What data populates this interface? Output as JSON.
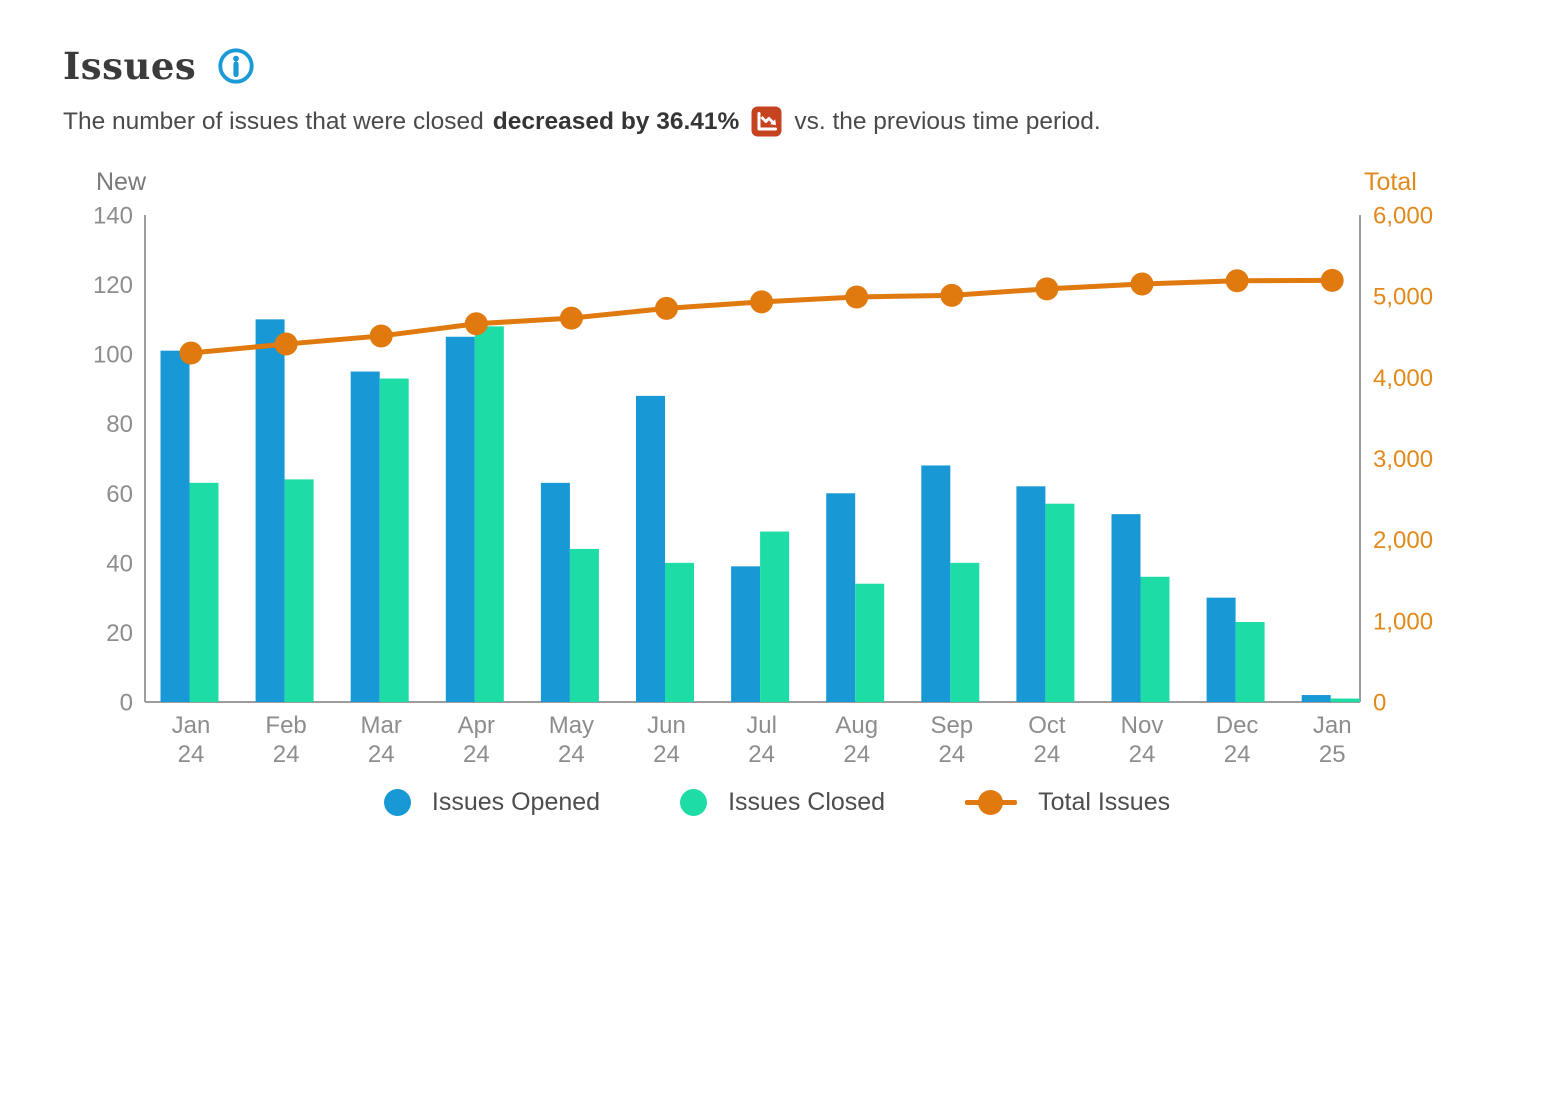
{
  "header": {
    "title": "Issues",
    "subtitle_prefix": "The number of issues that were closed",
    "subtitle_bold": "decreased by 36.41%",
    "subtitle_suffix": "vs. the previous time period.",
    "accent_blue": "#1a9ad7",
    "trend_icon_bg": "#c64320"
  },
  "chart_data": {
    "type": "combo-bar-line",
    "categories": [
      "Jan 24",
      "Feb 24",
      "Mar 24",
      "Apr 24",
      "May 24",
      "Jun 24",
      "Jul 24",
      "Aug 24",
      "Sep 24",
      "Oct 24",
      "Nov 24",
      "Dec 24",
      "Jan 25"
    ],
    "series": [
      {
        "name": "Issues Opened",
        "type": "bar",
        "axis": "left",
        "color": "#1899d6",
        "values": [
          101,
          110,
          95,
          105,
          63,
          88,
          39,
          60,
          68,
          62,
          54,
          30,
          2
        ]
      },
      {
        "name": "Issues Closed",
        "type": "bar",
        "axis": "left",
        "color": "#1edca6",
        "values": [
          63,
          64,
          93,
          108,
          44,
          40,
          49,
          34,
          40,
          57,
          36,
          23,
          1
        ]
      },
      {
        "name": "Total Issues",
        "type": "line",
        "axis": "right",
        "color": "#e0790e",
        "values": [
          4300,
          4410,
          4510,
          4660,
          4730,
          4850,
          4930,
          4990,
          5010,
          5090,
          5150,
          5190,
          5195
        ]
      }
    ],
    "left_axis": {
      "label": "New",
      "min": 0,
      "max": 140,
      "tick_step": 20,
      "ticks": [
        0,
        20,
        40,
        60,
        80,
        100,
        120,
        140
      ]
    },
    "right_axis": {
      "label": "Total",
      "min": 0,
      "max": 6000,
      "tick_step": 1000,
      "ticks": [
        "0",
        "1,000",
        "2,000",
        "3,000",
        "4,000",
        "5,000",
        "6,000"
      ]
    },
    "grid": false,
    "legend_position": "bottom"
  }
}
